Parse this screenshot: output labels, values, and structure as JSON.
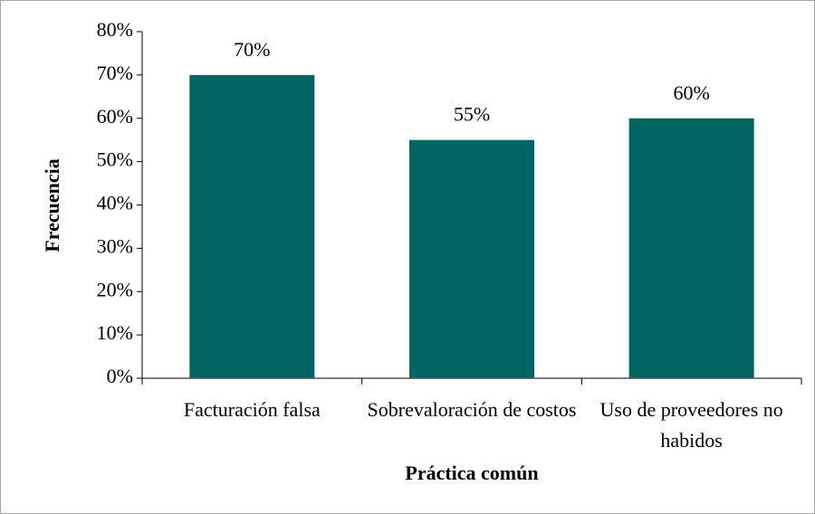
{
  "chart_data": {
    "type": "bar",
    "categories": [
      "Facturación falsa",
      "Sobrevaloración de costos",
      "Uso de proveedores no habidos"
    ],
    "values": [
      70,
      55,
      60
    ],
    "value_labels": [
      "70%",
      "55%",
      "60%"
    ],
    "color": "#006661",
    "xlabel": "Práctica común",
    "ylabel": "Frecuencia",
    "ylim": [
      0,
      80
    ],
    "yticks": [
      {
        "value": 0,
        "label": "0%"
      },
      {
        "value": 10,
        "label": "10%"
      },
      {
        "value": 20,
        "label": "20%"
      },
      {
        "value": 30,
        "label": "30%"
      },
      {
        "value": 40,
        "label": "40%"
      },
      {
        "value": 50,
        "label": "50%"
      },
      {
        "value": 60,
        "label": "60%"
      },
      {
        "value": 70,
        "label": "70%"
      },
      {
        "value": 80,
        "label": "80%"
      }
    ],
    "grid": false
  }
}
